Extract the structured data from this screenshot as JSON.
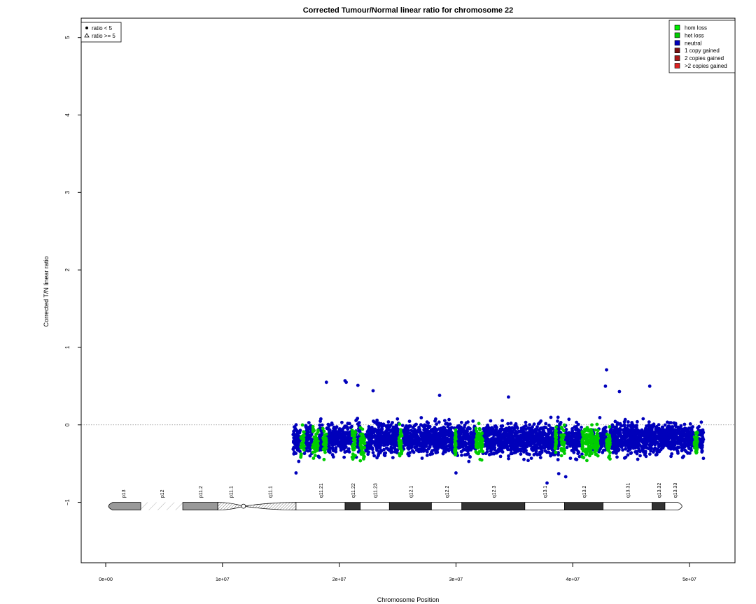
{
  "chart_data": {
    "type": "scatter",
    "title": "Corrected Tumour/Normal linear ratio for chromosome  22",
    "xlabel": "Chromosome Position",
    "ylabel": "Corrected T/N linear ratio",
    "xlim": [
      -2100000,
      53900000
    ],
    "ylim": [
      -1.78,
      5.25
    ],
    "x_ticks": [
      0,
      10000000,
      20000000,
      30000000,
      40000000,
      50000000
    ],
    "x_tick_labels": [
      "0e+00",
      "1e+07",
      "2e+07",
      "3e+07",
      "4e+07",
      "5e+07"
    ],
    "y_ticks": [
      -1,
      0,
      1,
      2,
      3,
      4,
      5
    ],
    "y_tick_labels": [
      "−1",
      "0",
      "1",
      "2",
      "3",
      "4",
      "5"
    ],
    "reference_line_y": 0,
    "grid": false,
    "colors": {
      "hom_loss": "#00ee00",
      "het_loss": "#00cc00",
      "neutral": "#0000bb",
      "one_copy_gained": "#7a1010",
      "two_copies_gained": "#aa1818",
      "more_copies_gained": "#dd2222",
      "reference_line": "#888888"
    },
    "state_legend": {
      "position": "top-right",
      "entries": [
        {
          "label": "hom loss",
          "color": "#00ee00"
        },
        {
          "label": "het loss",
          "color": "#00cc00"
        },
        {
          "label": "neutral",
          "color": "#0000bb"
        },
        {
          "label": "1 copy gained",
          "color": "#7a1010"
        },
        {
          "label": "2 copies gained",
          "color": "#aa1818"
        },
        {
          "label": ">2 copies gained",
          "color": "#dd2222"
        }
      ]
    },
    "shape_legend": {
      "position": "top-left",
      "entries": [
        {
          "label": "ratio < 5",
          "symbol": "dot"
        },
        {
          "label": "ratio >= 5",
          "symbol": "triangle"
        }
      ]
    },
    "data_x_range": [
      16050000,
      51200000
    ],
    "neutral_band": {
      "center": -0.18,
      "low": -0.45,
      "high": 0.13
    },
    "het_loss_segments": [
      [
        16700000,
        17000000
      ],
      [
        17700000,
        18200000
      ],
      [
        18600000,
        18900000
      ],
      [
        21100000,
        21400000
      ],
      [
        21800000,
        22200000
      ],
      [
        25100000,
        25400000
      ],
      [
        29900000,
        30000000
      ],
      [
        31700000,
        32300000
      ],
      [
        38500000,
        38600000
      ],
      [
        39000000,
        39300000
      ],
      [
        40800000,
        41700000
      ],
      [
        41800000,
        42200000
      ],
      [
        42900000,
        43200000
      ],
      [
        50400000,
        50700000
      ]
    ],
    "highlighted_points": [
      {
        "x": 18900000,
        "y": 0.55
      },
      {
        "x": 20500000,
        "y": 0.57
      },
      {
        "x": 20600000,
        "y": 0.55
      },
      {
        "x": 21600000,
        "y": 0.51
      },
      {
        "x": 22900000,
        "y": 0.44
      },
      {
        "x": 28600000,
        "y": 0.38
      },
      {
        "x": 34500000,
        "y": 0.36
      },
      {
        "x": 42900000,
        "y": 0.71
      },
      {
        "x": 42800000,
        "y": 0.5
      },
      {
        "x": 44000000,
        "y": 0.43
      },
      {
        "x": 46600000,
        "y": 0.5
      },
      {
        "x": 37800000,
        "y": -0.75
      },
      {
        "x": 38800000,
        "y": -0.63
      },
      {
        "x": 39400000,
        "y": -0.67
      },
      {
        "x": 16300000,
        "y": -0.62
      },
      {
        "x": 30000000,
        "y": -0.62
      }
    ],
    "ideogram": {
      "y": -1.05,
      "bands": [
        {
          "name": "p13",
          "start": 0,
          "end": 3000000,
          "stain": "gvar",
          "shape": "cap-left"
        },
        {
          "name": "p12",
          "start": 3000000,
          "end": 6600000,
          "stain": "stalk"
        },
        {
          "name": "p11.2",
          "start": 6600000,
          "end": 9600000,
          "stain": "gvar"
        },
        {
          "name": "p11.1",
          "start": 9600000,
          "end": 11800000,
          "stain": "acen-p"
        },
        {
          "name": "q11.1",
          "start": 11800000,
          "end": 16300000,
          "stain": "acen-q"
        },
        {
          "name": "q11.21",
          "start": 16300000,
          "end": 20500000,
          "stain": "gneg"
        },
        {
          "name": "q11.22",
          "start": 20500000,
          "end": 21800000,
          "stain": "gpos100"
        },
        {
          "name": "q11.23",
          "start": 21800000,
          "end": 24300000,
          "stain": "gneg"
        },
        {
          "name": "q12.1",
          "start": 24300000,
          "end": 27900000,
          "stain": "gpos100"
        },
        {
          "name": "q12.2",
          "start": 27900000,
          "end": 30500000,
          "stain": "gneg"
        },
        {
          "name": "q12.3",
          "start": 30500000,
          "end": 35900000,
          "stain": "gpos100"
        },
        {
          "name": "q13.1",
          "start": 35900000,
          "end": 39300000,
          "stain": "gneg"
        },
        {
          "name": "q13.2",
          "start": 39300000,
          "end": 42600000,
          "stain": "gpos100"
        },
        {
          "name": "q13.31",
          "start": 42600000,
          "end": 46800000,
          "stain": "gneg"
        },
        {
          "name": "q13.32",
          "start": 46800000,
          "end": 47900000,
          "stain": "gpos100"
        },
        {
          "name": "q13.33",
          "start": 47900000,
          "end": 49600000,
          "stain": "gneg",
          "shape": "cap-right"
        }
      ]
    }
  }
}
